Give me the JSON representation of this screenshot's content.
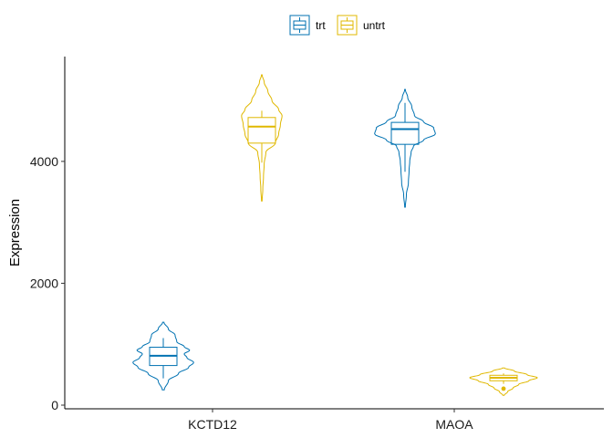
{
  "chart_data": {
    "type": "violin",
    "title": "",
    "xlabel": "",
    "ylabel": "Expression",
    "ylim": [
      -60,
      5720
    ],
    "yticks": [
      0,
      2000,
      4000
    ],
    "ytick_labels": [
      "0",
      "2000",
      "4000"
    ],
    "categories": [
      "KCTD12",
      "MAOA"
    ],
    "legend": {
      "position": "top",
      "entries": [
        "trt",
        "untrt"
      ]
    },
    "colors": {
      "trt": "#0072B2",
      "untrt": "#E0B800"
    },
    "series": [
      {
        "name": "trt",
        "color": "#0072B2",
        "groups": [
          {
            "category": "KCTD12",
            "violin_min": 250,
            "violin_max": 1360,
            "density": [
              [
                250,
                0.03
              ],
              [
                400,
                0.15
              ],
              [
                520,
                0.45
              ],
              [
                620,
                0.75
              ],
              [
                700,
                0.9
              ],
              [
                780,
                0.7
              ],
              [
                840,
                0.62
              ],
              [
                900,
                0.78
              ],
              [
                960,
                0.62
              ],
              [
                1040,
                0.4
              ],
              [
                1150,
                0.35
              ],
              [
                1250,
                0.15
              ],
              [
                1360,
                0.02
              ]
            ],
            "box": {
              "q1": 650,
              "median": 810,
              "q3": 950,
              "whisker_low": 440,
              "whisker_high": 1100
            },
            "outliers": []
          },
          {
            "category": "MAOA",
            "violin_min": 3250,
            "violin_max": 5180,
            "density": [
              [
                3250,
                0.01
              ],
              [
                3450,
                0.04
              ],
              [
                3650,
                0.1
              ],
              [
                3850,
                0.12
              ],
              [
                4000,
                0.14
              ],
              [
                4150,
                0.18
              ],
              [
                4250,
                0.25
              ],
              [
                4350,
                0.55
              ],
              [
                4450,
                0.9
              ],
              [
                4550,
                0.85
              ],
              [
                4650,
                0.55
              ],
              [
                4750,
                0.28
              ],
              [
                4900,
                0.2
              ],
              [
                5050,
                0.08
              ],
              [
                5180,
                0.01
              ]
            ],
            "box": {
              "q1": 4280,
              "median": 4530,
              "q3": 4640,
              "whisker_low": 3830,
              "whisker_high": 4960
            },
            "outliers": []
          }
        ]
      },
      {
        "name": "untrt",
        "color": "#E0B800",
        "groups": [
          {
            "category": "KCTD12",
            "violin_min": 3350,
            "violin_max": 5420,
            "density": [
              [
                3350,
                0.01
              ],
              [
                3550,
                0.03
              ],
              [
                3750,
                0.05
              ],
              [
                3950,
                0.07
              ],
              [
                4150,
                0.12
              ],
              [
                4300,
                0.4
              ],
              [
                4450,
                0.5
              ],
              [
                4600,
                0.55
              ],
              [
                4750,
                0.6
              ],
              [
                4850,
                0.5
              ],
              [
                5000,
                0.3
              ],
              [
                5150,
                0.18
              ],
              [
                5300,
                0.07
              ],
              [
                5420,
                0.01
              ]
            ],
            "box": {
              "q1": 4300,
              "median": 4570,
              "q3": 4720,
              "whisker_low": 3980,
              "whisker_high": 4830
            },
            "outliers": []
          },
          {
            "category": "MAOA",
            "violin_min": 160,
            "violin_max": 610,
            "density": [
              [
                160,
                0.02
              ],
              [
                220,
                0.12
              ],
              [
                280,
                0.28
              ],
              [
                340,
                0.45
              ],
              [
                400,
                0.75
              ],
              [
                450,
                1.0
              ],
              [
                500,
                0.7
              ],
              [
                560,
                0.32
              ],
              [
                610,
                0.03
              ]
            ],
            "box": {
              "q1": 400,
              "median": 450,
              "q3": 490,
              "whisker_low": 350,
              "whisker_high": 520
            },
            "outliers": [
              270
            ]
          }
        ]
      }
    ]
  }
}
